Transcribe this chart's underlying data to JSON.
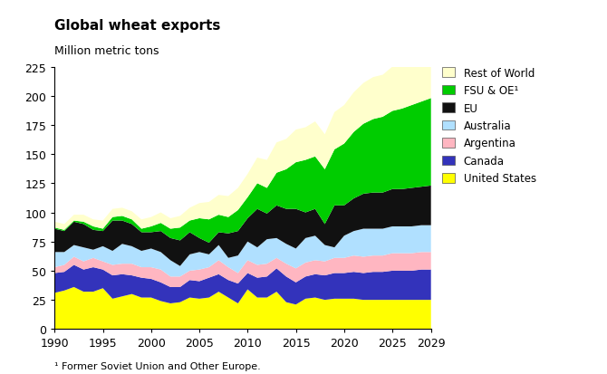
{
  "title": "Global wheat exports",
  "subtitle": "Million metric tons",
  "footnote": "¹ Former Soviet Union and Other Europe.",
  "years": [
    1990,
    1991,
    1992,
    1993,
    1994,
    1995,
    1996,
    1997,
    1998,
    1999,
    2000,
    2001,
    2002,
    2003,
    2004,
    2005,
    2006,
    2007,
    2008,
    2009,
    2010,
    2011,
    2012,
    2013,
    2014,
    2015,
    2016,
    2017,
    2018,
    2019,
    2020,
    2021,
    2022,
    2023,
    2024,
    2025,
    2026,
    2027,
    2028,
    2029
  ],
  "series": {
    "United States": [
      31,
      33,
      36,
      32,
      32,
      35,
      26,
      28,
      30,
      27,
      27,
      24,
      22,
      23,
      27,
      26,
      27,
      32,
      27,
      22,
      34,
      27,
      27,
      32,
      23,
      21,
      26,
      27,
      25,
      26,
      26,
      26,
      25,
      25,
      25,
      25,
      25,
      25,
      25,
      25
    ],
    "Canada": [
      17,
      16,
      19,
      19,
      21,
      16,
      20,
      19,
      16,
      17,
      16,
      16,
      14,
      13,
      15,
      15,
      17,
      15,
      15,
      17,
      14,
      17,
      18,
      20,
      22,
      19,
      19,
      20,
      21,
      22,
      22,
      23,
      23,
      24,
      24,
      25,
      25,
      25,
      26,
      26
    ],
    "Argentina": [
      5,
      6,
      7,
      7,
      8,
      7,
      9,
      9,
      10,
      9,
      10,
      11,
      9,
      9,
      8,
      10,
      9,
      12,
      11,
      9,
      11,
      11,
      11,
      9,
      11,
      12,
      12,
      12,
      12,
      13,
      13,
      14,
      14,
      14,
      14,
      15,
      15,
      15,
      15,
      15
    ],
    "Australia": [
      13,
      11,
      10,
      12,
      7,
      13,
      12,
      17,
      15,
      14,
      16,
      15,
      14,
      9,
      14,
      15,
      11,
      13,
      8,
      15,
      16,
      15,
      21,
      17,
      17,
      17,
      21,
      21,
      14,
      9,
      19,
      21,
      24,
      23,
      23,
      23,
      23,
      23,
      23,
      23
    ],
    "EU": [
      20,
      18,
      20,
      20,
      17,
      13,
      26,
      20,
      19,
      16,
      14,
      18,
      19,
      22,
      19,
      12,
      10,
      11,
      21,
      21,
      20,
      33,
      22,
      28,
      30,
      34,
      22,
      23,
      18,
      36,
      26,
      28,
      30,
      31,
      31,
      32,
      32,
      33,
      33,
      34
    ],
    "FSU & OE": [
      1,
      1,
      1,
      2,
      3,
      2,
      3,
      4,
      4,
      3,
      5,
      7,
      8,
      11,
      10,
      17,
      20,
      15,
      14,
      18,
      18,
      22,
      22,
      28,
      34,
      40,
      45,
      45,
      47,
      48,
      53,
      57,
      60,
      63,
      65,
      67,
      69,
      71,
      73,
      75
    ],
    "Rest of World": [
      5,
      5,
      5,
      6,
      6,
      7,
      7,
      7,
      7,
      8,
      8,
      9,
      9,
      10,
      11,
      13,
      15,
      17,
      18,
      19,
      20,
      22,
      24,
      26,
      26,
      28,
      28,
      30,
      30,
      32,
      33,
      34,
      35,
      36,
      36,
      38,
      38,
      38,
      40,
      43
    ]
  },
  "colors": {
    "United States": "#FFFF00",
    "Canada": "#3333BB",
    "Argentina": "#FFB6C1",
    "Australia": "#B0E0FF",
    "EU": "#111111",
    "FSU & OE": "#00CC00",
    "Rest of World": "#FFFFCC"
  },
  "ylim": [
    0,
    225
  ],
  "yticks": [
    0,
    25,
    50,
    75,
    100,
    125,
    150,
    175,
    200,
    225
  ],
  "xticks": [
    1990,
    1995,
    2000,
    2005,
    2010,
    2015,
    2020,
    2025,
    2029
  ],
  "legend_labels_ordered": [
    "Rest of World",
    "FSU & OE",
    "EU",
    "Australia",
    "Argentina",
    "Canada",
    "United States"
  ]
}
